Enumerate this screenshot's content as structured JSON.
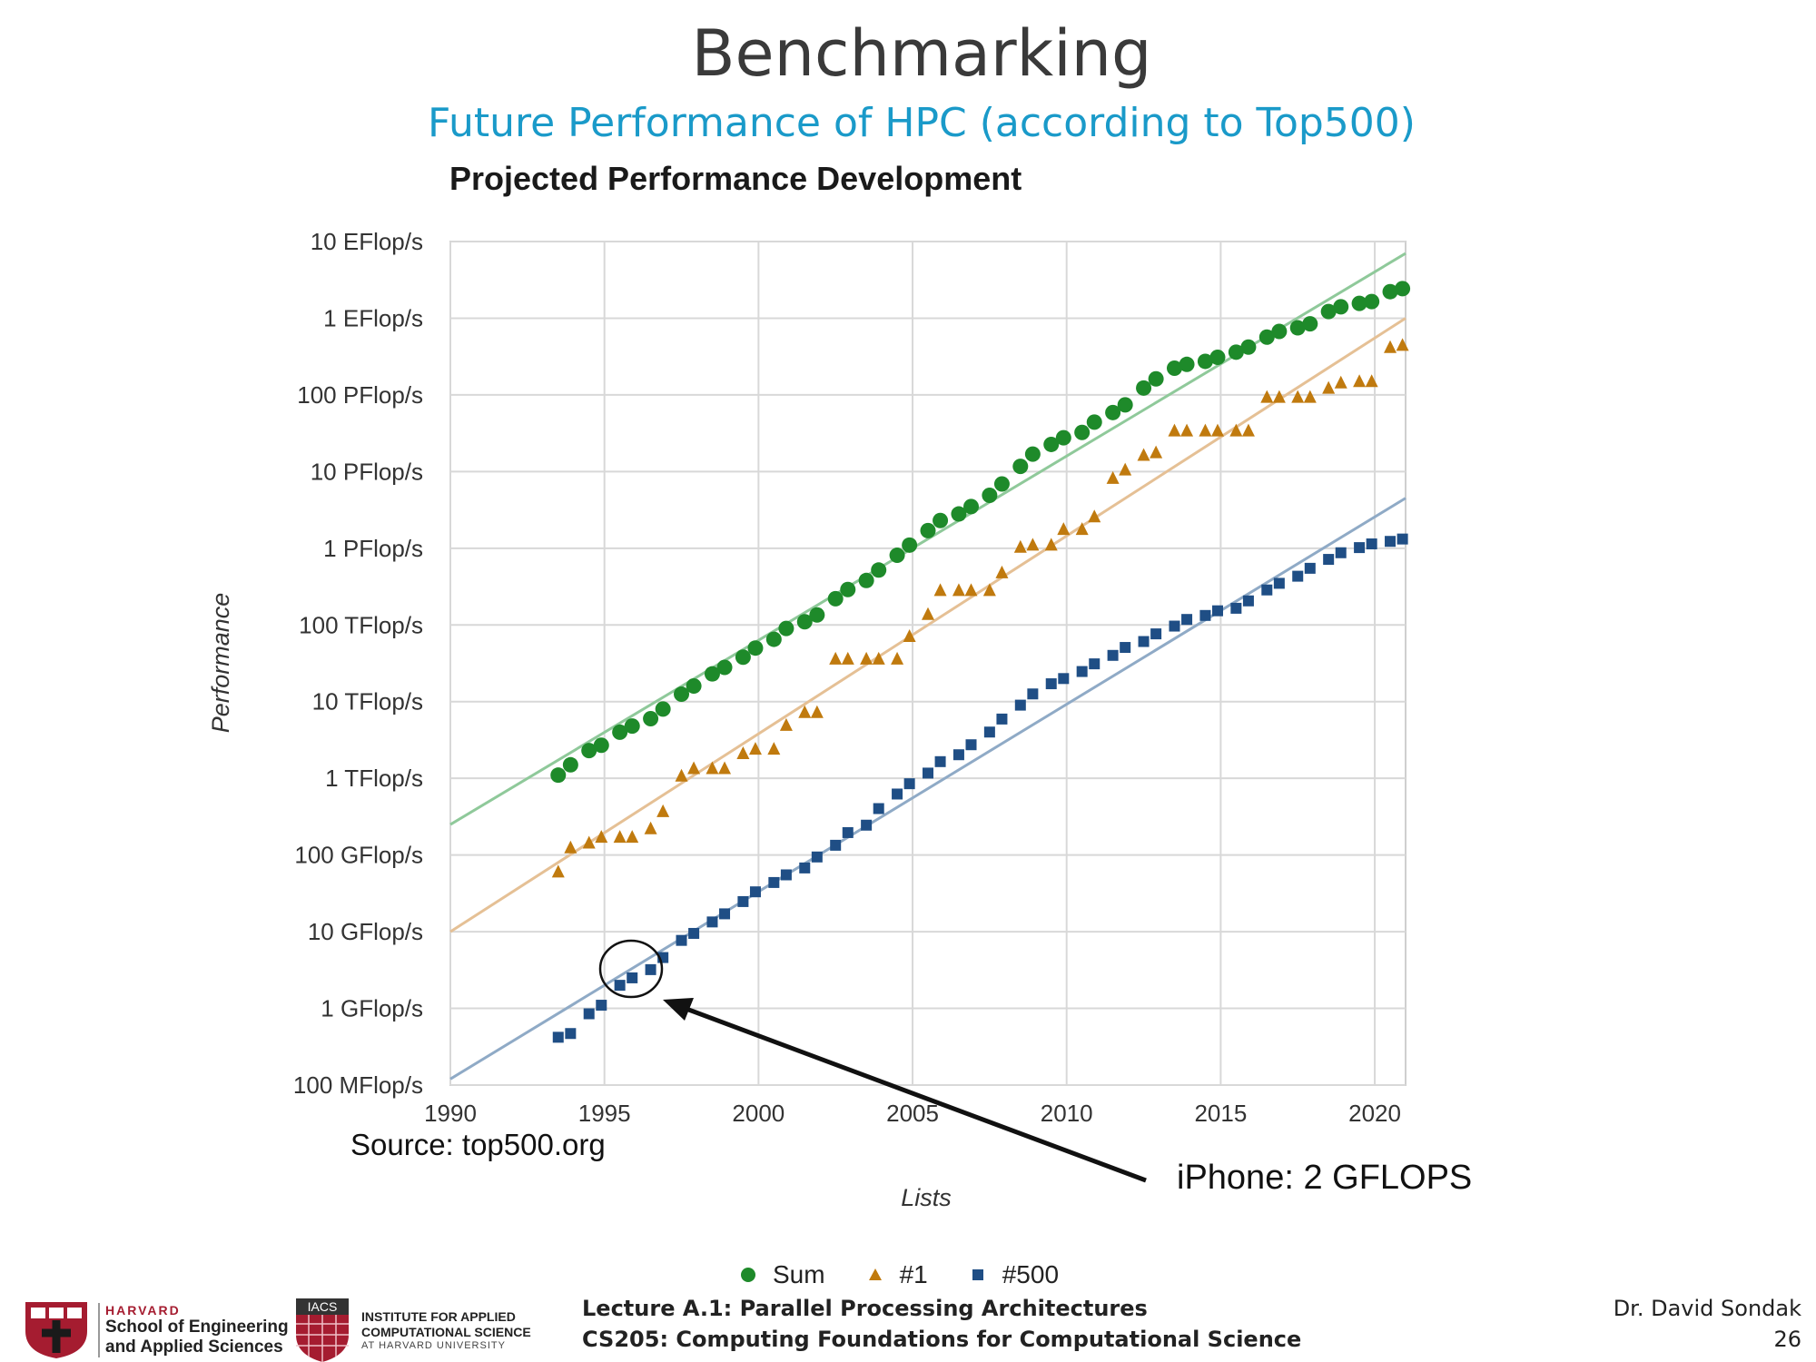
{
  "slide": {
    "title": "Benchmarking",
    "subtitle": "Future Performance of HPC (according to Top500)"
  },
  "annotations": {
    "source": "Source: top500.org",
    "callout": "iPhone: 2 GFLOPS"
  },
  "footer": {
    "harvard_top": "HARVARD",
    "harvard_line1": "School of Engineering",
    "harvard_line2": "and Applied Sciences",
    "iacs_badge": "IACS",
    "iacs_line1": "INSTITUTE FOR APPLIED",
    "iacs_line2": "COMPUTATIONAL SCIENCE",
    "iacs_line3": "AT HARVARD UNIVERSITY",
    "lecture_line1": "Lecture A.1: Parallel Processing Architectures",
    "lecture_line2": "CS205: Computing Foundations for Computational Science",
    "author": "Dr. David Sondak",
    "page": "26"
  },
  "chart_data": {
    "type": "scatter",
    "title": "Projected Performance Development",
    "xlabel": "Lists",
    "ylabel": "Performance",
    "log_y": true,
    "xlim": [
      1990,
      2021
    ],
    "ylim_flops": [
      "100 MFlop/s",
      "10 EFlop/s"
    ],
    "x_ticks": [
      "1990",
      "1995",
      "2000",
      "2005",
      "2010",
      "2015",
      "2020"
    ],
    "y_ticks": [
      "100 MFlop/s",
      "1 GFlop/s",
      "10 GFlop/s",
      "100 GFlop/s",
      "1 TFlop/s",
      "10 TFlop/s",
      "100 TFlop/s",
      "1 PFlop/s",
      "10 PFlop/s",
      "100 PFlop/s",
      "1 EFlop/s",
      "10 EFlop/s"
    ],
    "grid": true,
    "legend_position": "bottom",
    "series": [
      {
        "name": "Sum",
        "marker": "circle",
        "color": "#1e8a2a",
        "trend_color": "#8fc99a",
        "trend": [
          [
            1990,
            "250 GFlop/s"
          ],
          [
            2021,
            "7 EFlop/s"
          ]
        ],
        "points": [
          [
            1993.5,
            "1.1 TFlop/s"
          ],
          [
            1993.9,
            "1.5 TFlop/s"
          ],
          [
            1994.5,
            "2.3 TFlop/s"
          ],
          [
            1994.9,
            "2.7 TFlop/s"
          ],
          [
            1995.5,
            "4 TFlop/s"
          ],
          [
            1995.9,
            "4.8 TFlop/s"
          ],
          [
            1996.5,
            "6 TFlop/s"
          ],
          [
            1996.9,
            "8 TFlop/s"
          ],
          [
            1997.5,
            "12.5 TFlop/s"
          ],
          [
            1997.9,
            "16 TFlop/s"
          ],
          [
            1998.5,
            "23 TFlop/s"
          ],
          [
            1998.9,
            "28 TFlop/s"
          ],
          [
            1999.5,
            "38 TFlop/s"
          ],
          [
            1999.9,
            "50 TFlop/s"
          ],
          [
            2000.5,
            "65 TFlop/s"
          ],
          [
            2000.9,
            "90 TFlop/s"
          ],
          [
            2001.5,
            "110 TFlop/s"
          ],
          [
            2001.9,
            "135 TFlop/s"
          ],
          [
            2002.5,
            "220 TFlop/s"
          ],
          [
            2002.9,
            "290 TFlop/s"
          ],
          [
            2003.5,
            "380 TFlop/s"
          ],
          [
            2003.9,
            "520 TFlop/s"
          ],
          [
            2004.5,
            "810 TFlop/s"
          ],
          [
            2004.9,
            "1.1 PFlop/s"
          ],
          [
            2005.5,
            "1.7 PFlop/s"
          ],
          [
            2005.9,
            "2.3 PFlop/s"
          ],
          [
            2006.5,
            "2.8 PFlop/s"
          ],
          [
            2006.9,
            "3.5 PFlop/s"
          ],
          [
            2007.5,
            "4.9 PFlop/s"
          ],
          [
            2007.9,
            "6.9 PFlop/s"
          ],
          [
            2008.5,
            "11.7 PFlop/s"
          ],
          [
            2008.9,
            "16.9 PFlop/s"
          ],
          [
            2009.5,
            "22.6 PFlop/s"
          ],
          [
            2009.9,
            "27.6 PFlop/s"
          ],
          [
            2010.5,
            "32.4 PFlop/s"
          ],
          [
            2010.9,
            "44.2 PFlop/s"
          ],
          [
            2011.5,
            "58.9 PFlop/s"
          ],
          [
            2011.9,
            "74.2 PFlop/s"
          ],
          [
            2012.5,
            "123 PFlop/s"
          ],
          [
            2012.9,
            "162 PFlop/s"
          ],
          [
            2013.5,
            "223 PFlop/s"
          ],
          [
            2013.9,
            "250 PFlop/s"
          ],
          [
            2014.5,
            "274 PFlop/s"
          ],
          [
            2014.9,
            "309 PFlop/s"
          ],
          [
            2015.5,
            "361 PFlop/s"
          ],
          [
            2015.9,
            "420 PFlop/s"
          ],
          [
            2016.5,
            "567 PFlop/s"
          ],
          [
            2016.9,
            "672 PFlop/s"
          ],
          [
            2017.5,
            "749 PFlop/s"
          ],
          [
            2017.9,
            "845 PFlop/s"
          ],
          [
            2018.5,
            "1.22 EFlop/s"
          ],
          [
            2018.9,
            "1.41 EFlop/s"
          ],
          [
            2019.5,
            "1.56 EFlop/s"
          ],
          [
            2019.9,
            "1.65 EFlop/s"
          ],
          [
            2020.5,
            "2.22 EFlop/s"
          ],
          [
            2020.9,
            "2.43 EFlop/s"
          ]
        ]
      },
      {
        "name": "#1",
        "marker": "triangle",
        "color": "#c07a0e",
        "trend_color": "#e5c095",
        "trend": [
          [
            1990,
            "10 GFlop/s"
          ],
          [
            2021,
            "1 EFlop/s"
          ]
        ],
        "points": [
          [
            1993.5,
            "60 GFlop/s"
          ],
          [
            1993.9,
            "124 GFlop/s"
          ],
          [
            1994.5,
            "143 GFlop/s"
          ],
          [
            1994.9,
            "170 GFlop/s"
          ],
          [
            1995.5,
            "170 GFlop/s"
          ],
          [
            1995.9,
            "170 GFlop/s"
          ],
          [
            1996.5,
            "220 GFlop/s"
          ],
          [
            1996.9,
            "368 GFlop/s"
          ],
          [
            1997.5,
            "1.07 TFlop/s"
          ],
          [
            1997.9,
            "1.34 TFlop/s"
          ],
          [
            1998.5,
            "1.34 TFlop/s"
          ],
          [
            1998.9,
            "1.34 TFlop/s"
          ],
          [
            1999.5,
            "2.1 TFlop/s"
          ],
          [
            1999.9,
            "2.4 TFlop/s"
          ],
          [
            2000.5,
            "2.4 TFlop/s"
          ],
          [
            2000.9,
            "4.9 TFlop/s"
          ],
          [
            2001.5,
            "7.2 TFlop/s"
          ],
          [
            2001.9,
            "7.2 TFlop/s"
          ],
          [
            2002.5,
            "35.9 TFlop/s"
          ],
          [
            2002.9,
            "35.9 TFlop/s"
          ],
          [
            2003.5,
            "35.9 TFlop/s"
          ],
          [
            2003.9,
            "35.9 TFlop/s"
          ],
          [
            2004.5,
            "35.9 TFlop/s"
          ],
          [
            2004.9,
            "70.7 TFlop/s"
          ],
          [
            2005.5,
            "137 TFlop/s"
          ],
          [
            2005.9,
            "281 TFlop/s"
          ],
          [
            2006.5,
            "281 TFlop/s"
          ],
          [
            2006.9,
            "281 TFlop/s"
          ],
          [
            2007.5,
            "281 TFlop/s"
          ],
          [
            2007.9,
            "478 TFlop/s"
          ],
          [
            2008.5,
            "1.03 PFlop/s"
          ],
          [
            2008.9,
            "1.1 PFlop/s"
          ],
          [
            2009.5,
            "1.1 PFlop/s"
          ],
          [
            2009.9,
            "1.76 PFlop/s"
          ],
          [
            2010.5,
            "1.76 PFlop/s"
          ],
          [
            2010.9,
            "2.57 PFlop/s"
          ],
          [
            2011.5,
            "8.16 PFlop/s"
          ],
          [
            2011.9,
            "10.5 PFlop/s"
          ],
          [
            2012.5,
            "16.3 PFlop/s"
          ],
          [
            2012.9,
            "17.6 PFlop/s"
          ],
          [
            2013.5,
            "33.9 PFlop/s"
          ],
          [
            2013.9,
            "33.9 PFlop/s"
          ],
          [
            2014.5,
            "33.9 PFlop/s"
          ],
          [
            2014.9,
            "33.9 PFlop/s"
          ],
          [
            2015.5,
            "33.9 PFlop/s"
          ],
          [
            2015.9,
            "33.9 PFlop/s"
          ],
          [
            2016.5,
            "93 PFlop/s"
          ],
          [
            2016.9,
            "93 PFlop/s"
          ],
          [
            2017.5,
            "93 PFlop/s"
          ],
          [
            2017.9,
            "93 PFlop/s"
          ],
          [
            2018.5,
            "122 PFlop/s"
          ],
          [
            2018.9,
            "143 PFlop/s"
          ],
          [
            2019.5,
            "149 PFlop/s"
          ],
          [
            2019.9,
            "149 PFlop/s"
          ],
          [
            2020.5,
            "415 PFlop/s"
          ],
          [
            2020.9,
            "442 PFlop/s"
          ]
        ]
      },
      {
        "name": "#500",
        "marker": "square",
        "color": "#1f4e85",
        "trend_color": "#8faac6",
        "trend": [
          [
            1990,
            "120 MFlop/s"
          ],
          [
            2021,
            "4.5 PFlop/s"
          ]
        ],
        "points": [
          [
            1993.5,
            "0.42 GFlop/s"
          ],
          [
            1993.9,
            "0.47 GFlop/s"
          ],
          [
            1994.5,
            "0.85 GFlop/s"
          ],
          [
            1994.9,
            "1.1 GFlop/s"
          ],
          [
            1995.5,
            "2 GFlop/s"
          ],
          [
            1995.9,
            "2.5 GFlop/s"
          ],
          [
            1996.5,
            "3.2 GFlop/s"
          ],
          [
            1996.9,
            "4.6 GFlop/s"
          ],
          [
            1997.5,
            "7.7 GFlop/s"
          ],
          [
            1997.9,
            "9.5 GFlop/s"
          ],
          [
            1998.5,
            "13.4 GFlop/s"
          ],
          [
            1998.9,
            "17.1 GFlop/s"
          ],
          [
            1999.5,
            "24.7 GFlop/s"
          ],
          [
            1999.9,
            "33.1 GFlop/s"
          ],
          [
            2000.5,
            "43.8 GFlop/s"
          ],
          [
            2000.9,
            "55.1 GFlop/s"
          ],
          [
            2001.5,
            "67.8 GFlop/s"
          ],
          [
            2001.9,
            "94.3 GFlop/s"
          ],
          [
            2002.5,
            "134 GFlop/s"
          ],
          [
            2002.9,
            "196 GFlop/s"
          ],
          [
            2003.5,
            "245 GFlop/s"
          ],
          [
            2003.9,
            "403 GFlop/s"
          ],
          [
            2004.5,
            "624 GFlop/s"
          ],
          [
            2004.9,
            "850 GFlop/s"
          ],
          [
            2005.5,
            "1.17 TFlop/s"
          ],
          [
            2005.9,
            "1.65 TFlop/s"
          ],
          [
            2006.5,
            "2.03 TFlop/s"
          ],
          [
            2006.9,
            "2.74 TFlop/s"
          ],
          [
            2007.5,
            "4.01 TFlop/s"
          ],
          [
            2007.9,
            "5.93 TFlop/s"
          ],
          [
            2008.5,
            "9 TFlop/s"
          ],
          [
            2008.9,
            "12.6 TFlop/s"
          ],
          [
            2009.5,
            "17.1 TFlop/s"
          ],
          [
            2009.9,
            "20 TFlop/s"
          ],
          [
            2010.5,
            "24.7 TFlop/s"
          ],
          [
            2010.9,
            "31.1 TFlop/s"
          ],
          [
            2011.5,
            "40.1 TFlop/s"
          ],
          [
            2011.9,
            "50.9 TFlop/s"
          ],
          [
            2012.5,
            "60.8 TFlop/s"
          ],
          [
            2012.9,
            "76.5 TFlop/s"
          ],
          [
            2013.5,
            "96.6 TFlop/s"
          ],
          [
            2013.9,
            "118 TFlop/s"
          ],
          [
            2014.5,
            "133 TFlop/s"
          ],
          [
            2014.9,
            "153 TFlop/s"
          ],
          [
            2015.5,
            "165 TFlop/s"
          ],
          [
            2015.9,
            "206 TFlop/s"
          ],
          [
            2016.5,
            "286 TFlop/s"
          ],
          [
            2016.9,
            "349 TFlop/s"
          ],
          [
            2017.5,
            "432 TFlop/s"
          ],
          [
            2017.9,
            "548 TFlop/s"
          ],
          [
            2018.5,
            "716 TFlop/s"
          ],
          [
            2018.9,
            "874 TFlop/s"
          ],
          [
            2019.5,
            "1.02 PFlop/s"
          ],
          [
            2019.9,
            "1.14 PFlop/s"
          ],
          [
            2020.5,
            "1.23 PFlop/s"
          ],
          [
            2020.9,
            "1.32 PFlop/s"
          ]
        ]
      }
    ]
  }
}
